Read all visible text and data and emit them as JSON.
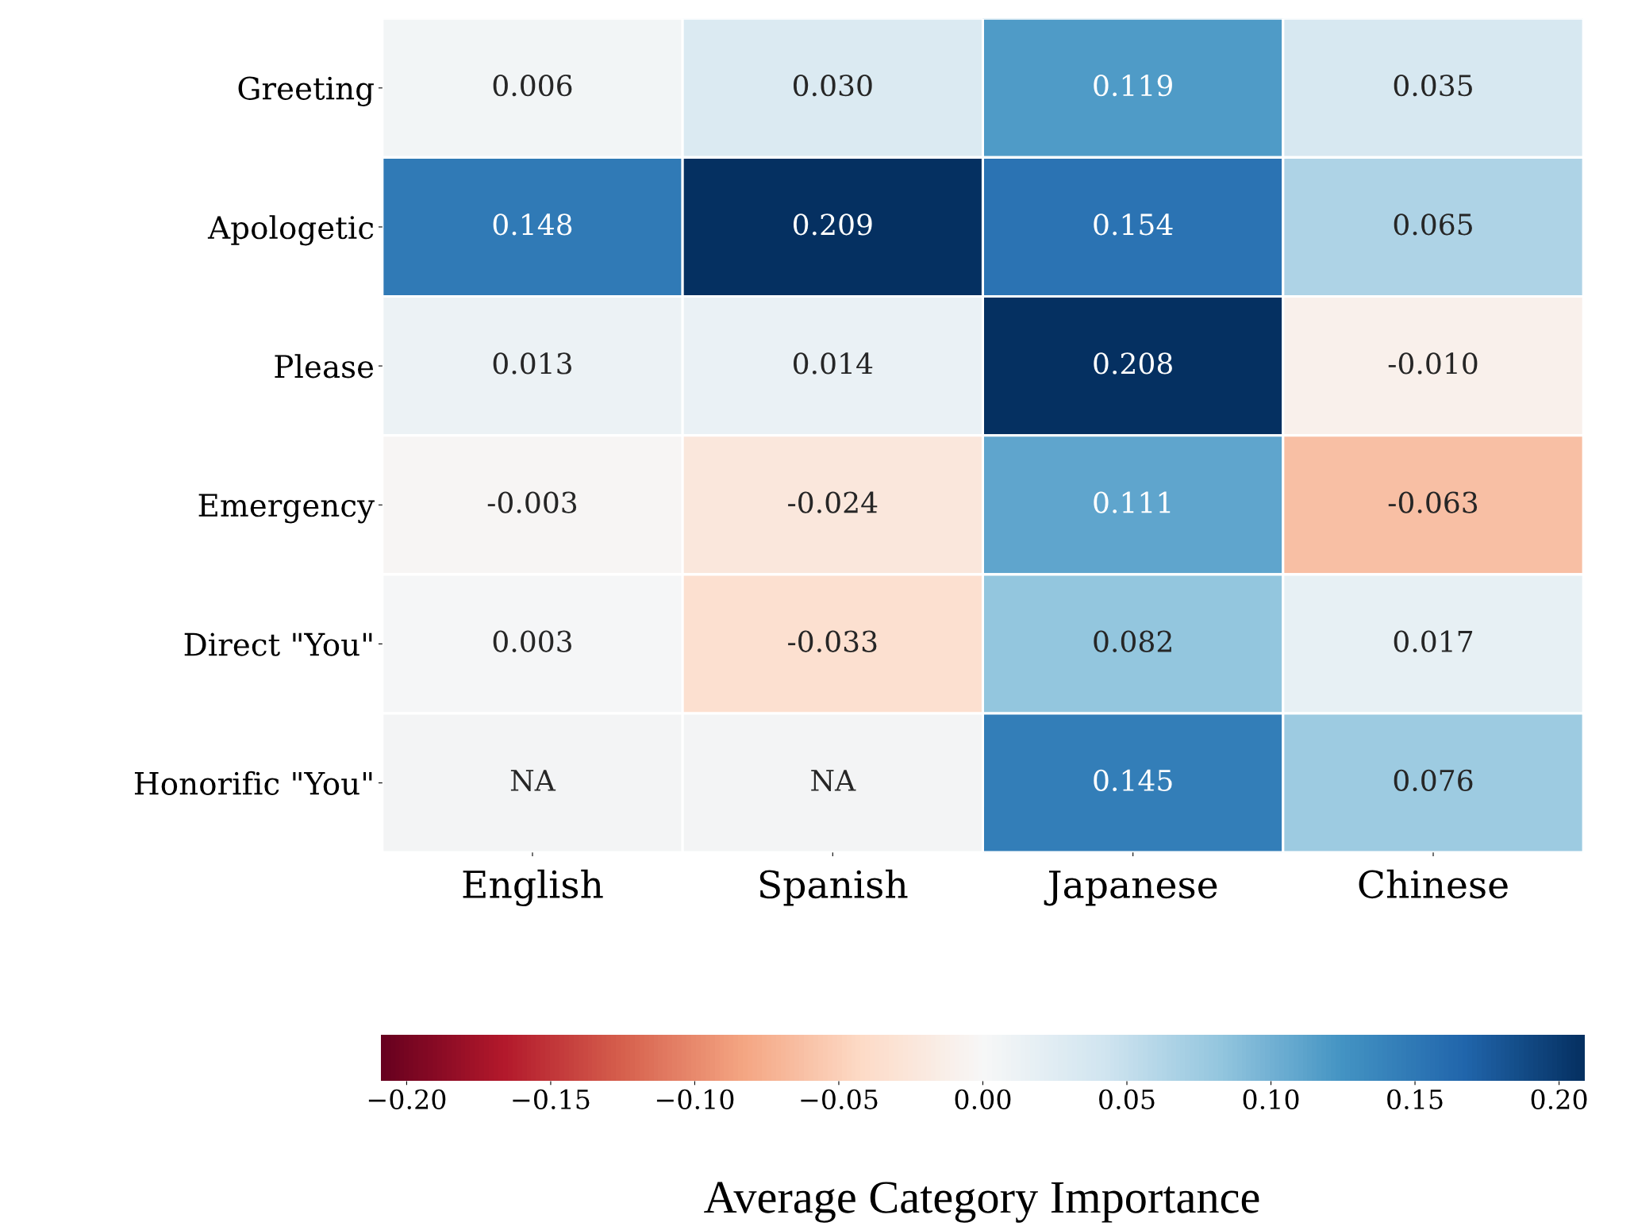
{
  "chart_data": {
    "type": "heatmap",
    "categories": [
      "English",
      "Spanish",
      "Japanese",
      "Chinese"
    ],
    "y_categories": [
      "Greeting",
      "Apologetic",
      "Please",
      "Emergency",
      "Direct \"You\"",
      "Honorific \"You\""
    ],
    "cells": [
      [
        0.006,
        0.03,
        0.119,
        0.035
      ],
      [
        0.148,
        0.209,
        0.154,
        0.065
      ],
      [
        0.013,
        0.014,
        0.208,
        -0.01
      ],
      [
        -0.003,
        -0.024,
        0.111,
        -0.063
      ],
      [
        0.003,
        -0.033,
        0.082,
        0.017
      ],
      [
        null,
        null,
        0.145,
        0.076
      ]
    ],
    "cell_labels": [
      [
        "0.006",
        "0.030",
        "0.119",
        "0.035"
      ],
      [
        "0.148",
        "0.209",
        "0.154",
        "0.065"
      ],
      [
        "0.013",
        "0.014",
        "0.208",
        "-0.010"
      ],
      [
        "-0.003",
        "-0.024",
        "0.111",
        "-0.063"
      ],
      [
        "0.003",
        "-0.033",
        "0.082",
        "0.017"
      ],
      [
        "NA",
        "NA",
        "0.145",
        "0.076"
      ]
    ],
    "clim": [
      -0.209,
      0.209
    ],
    "cticks": [
      {
        "value": -0.2,
        "label": "−0.20"
      },
      {
        "value": -0.15,
        "label": "−0.15"
      },
      {
        "value": -0.1,
        "label": "−0.10"
      },
      {
        "value": -0.05,
        "label": "−0.05"
      },
      {
        "value": 0,
        "label": "0.00"
      },
      {
        "value": 0.05,
        "label": "0.05"
      },
      {
        "value": 0.1,
        "label": "0.10"
      },
      {
        "value": 0.15,
        "label": "0.15"
      },
      {
        "value": 0.2,
        "label": "0.20"
      }
    ],
    "clabel": "Average Category Importance"
  }
}
